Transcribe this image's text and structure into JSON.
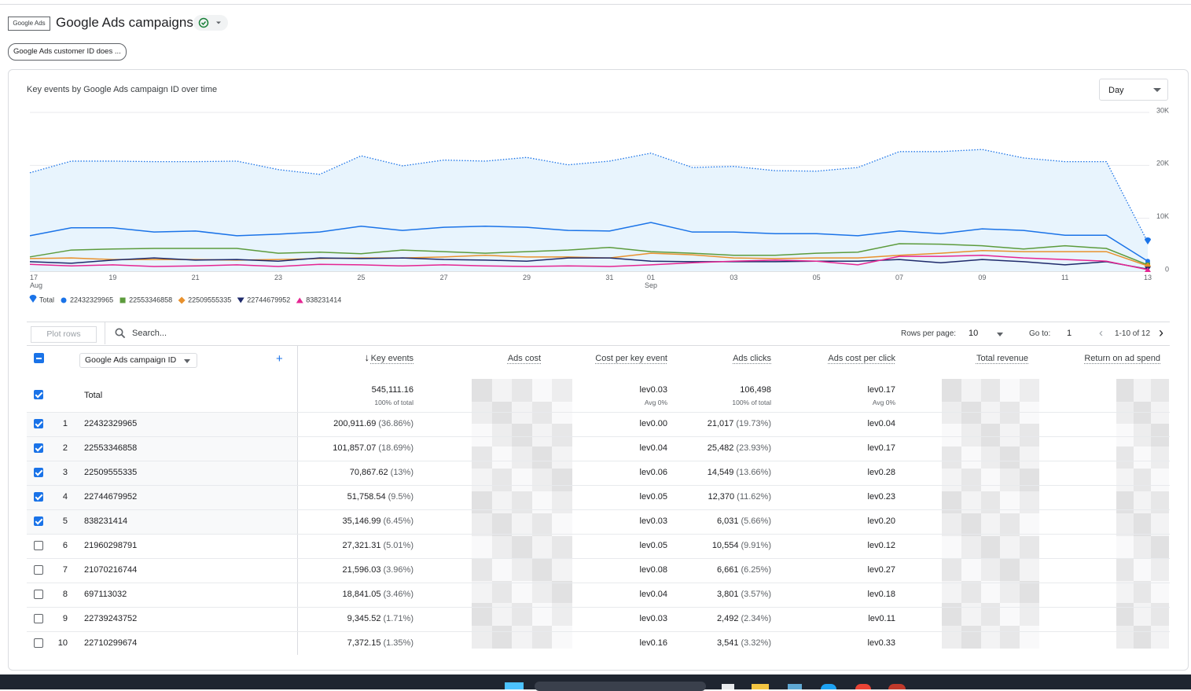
{
  "header": {
    "logo": "Google Ads",
    "title": "Google Ads campaigns",
    "filter_chip": "Google Ads customer ID does ..."
  },
  "chart_data": {
    "type": "line",
    "title": "Key events by Google Ads campaign ID over time",
    "granularity": "Day",
    "categories": [
      "17 Aug",
      null,
      "19",
      null,
      "21",
      null,
      "23",
      null,
      "25",
      null,
      "27",
      null,
      "29",
      null,
      "31",
      "01 Sep",
      null,
      "03",
      null,
      "05",
      null,
      "07",
      null,
      "09",
      null,
      "11",
      null,
      "13"
    ],
    "ylim": [
      0,
      30000
    ],
    "yticks": [
      0,
      {
        "value": 10000,
        "label": "10K"
      },
      {
        "value": 20000,
        "label": "20K"
      },
      {
        "value": 30000,
        "label": "30K"
      }
    ],
    "grid": true,
    "legend": "bottom",
    "series": [
      {
        "name": "Total",
        "color": "#1a73e8",
        "style": "dotted",
        "fill": "#e8f4fd",
        "marker": "pin",
        "values": [
          18600,
          20800,
          20800,
          20700,
          20700,
          20800,
          19200,
          18300,
          21800,
          19900,
          21000,
          20800,
          21500,
          20100,
          20800,
          22300,
          19600,
          19800,
          19000,
          18900,
          19600,
          22600,
          22600,
          23000,
          21400,
          20700,
          20700,
          5500
        ]
      },
      {
        "name": "22432329965",
        "color": "#1a73e8",
        "style": "solid",
        "marker": "circle",
        "values": [
          6700,
          8200,
          8200,
          7400,
          7600,
          6700,
          7000,
          7400,
          8500,
          7700,
          8300,
          8500,
          8300,
          7700,
          7600,
          9200,
          7400,
          7400,
          7100,
          7100,
          6700,
          7600,
          7100,
          8000,
          7700,
          6800,
          6800,
          1900
        ]
      },
      {
        "name": "22553346858",
        "color": "#5c9b3c",
        "style": "solid",
        "marker": "square",
        "values": [
          2700,
          4000,
          4200,
          4300,
          4300,
          4300,
          3400,
          3600,
          3300,
          4000,
          3700,
          3400,
          3700,
          4000,
          4500,
          3700,
          3400,
          3000,
          3000,
          3400,
          3600,
          5200,
          5100,
          4800,
          4200,
          4800,
          4300,
          1200
        ]
      },
      {
        "name": "22509555335",
        "color": "#e8912d",
        "style": "solid",
        "marker": "diamond",
        "values": [
          2400,
          2500,
          2200,
          2200,
          2200,
          2100,
          2200,
          2400,
          2500,
          2500,
          2700,
          3000,
          2700,
          2700,
          2500,
          3400,
          3100,
          2500,
          2400,
          2500,
          2500,
          3000,
          3400,
          3900,
          3700,
          3700,
          3700,
          1000
        ]
      },
      {
        "name": "22744679952",
        "color": "#1e2a6b",
        "style": "solid",
        "marker": "triangle-down",
        "values": [
          1800,
          1500,
          2100,
          2500,
          2100,
          2200,
          1900,
          2500,
          2400,
          2500,
          2200,
          2100,
          1900,
          2500,
          2500,
          1900,
          1800,
          1800,
          1800,
          1900,
          1900,
          2200,
          1600,
          2200,
          1800,
          1200,
          1800,
          400
        ]
      },
      {
        "name": "838231414",
        "color": "#e52592",
        "style": "solid",
        "marker": "triangle-up",
        "values": [
          1300,
          1000,
          1200,
          900,
          1000,
          1200,
          900,
          1300,
          1200,
          1000,
          1200,
          1000,
          900,
          1000,
          900,
          1200,
          1600,
          1900,
          2100,
          1900,
          1200,
          2800,
          2800,
          3000,
          2500,
          2200,
          1900,
          300
        ]
      }
    ]
  },
  "table": {
    "plot_rows": "Plot rows",
    "search_placeholder": "Search...",
    "rows_per_page_label": "Rows per page:",
    "rows_per_page": "10",
    "goto_label": "Go to:",
    "goto": "1",
    "page_range": "1-10 of 12",
    "dimension": "Google Ads campaign ID",
    "columns": [
      "Key events",
      "Ads cost",
      "Cost per key event",
      "Ads clicks",
      "Ads cost per click",
      "Total revenue",
      "Return on ad spend"
    ],
    "sorted_column": 0,
    "total": {
      "label": "Total",
      "key_events": "545,111.16",
      "key_events_note": "100% of total",
      "cost_per_key_event": "lev0.03",
      "cost_per_key_event_note": "Avg 0%",
      "ads_clicks": "106,498",
      "ads_clicks_note": "100% of total",
      "ads_cost_per_click": "lev0.17",
      "ads_cost_per_click_note": "Avg 0%"
    },
    "rows": [
      {
        "rank": "1",
        "id": "22432329965",
        "checked": true,
        "key_events": "200,911.69",
        "key_events_share": "(36.86%)",
        "cost_per_key_event": "lev0.00",
        "ads_clicks": "21,017",
        "ads_clicks_share": "(19.73%)",
        "ads_cost_per_click": "lev0.04"
      },
      {
        "rank": "2",
        "id": "22553346858",
        "checked": true,
        "key_events": "101,857.07",
        "key_events_share": "(18.69%)",
        "cost_per_key_event": "lev0.04",
        "ads_clicks": "25,482",
        "ads_clicks_share": "(23.93%)",
        "ads_cost_per_click": "lev0.17"
      },
      {
        "rank": "3",
        "id": "22509555335",
        "checked": true,
        "key_events": "70,867.62",
        "key_events_share": "(13%)",
        "cost_per_key_event": "lev0.06",
        "ads_clicks": "14,549",
        "ads_clicks_share": "(13.66%)",
        "ads_cost_per_click": "lev0.28"
      },
      {
        "rank": "4",
        "id": "22744679952",
        "checked": true,
        "key_events": "51,758.54",
        "key_events_share": "(9.5%)",
        "cost_per_key_event": "lev0.05",
        "ads_clicks": "12,370",
        "ads_clicks_share": "(11.62%)",
        "ads_cost_per_click": "lev0.23"
      },
      {
        "rank": "5",
        "id": "838231414",
        "checked": true,
        "key_events": "35,146.99",
        "key_events_share": "(6.45%)",
        "cost_per_key_event": "lev0.03",
        "ads_clicks": "6,031",
        "ads_clicks_share": "(5.66%)",
        "ads_cost_per_click": "lev0.20"
      },
      {
        "rank": "6",
        "id": "21960298791",
        "checked": false,
        "key_events": "27,321.31",
        "key_events_share": "(5.01%)",
        "cost_per_key_event": "lev0.05",
        "ads_clicks": "10,554",
        "ads_clicks_share": "(9.91%)",
        "ads_cost_per_click": "lev0.12"
      },
      {
        "rank": "7",
        "id": "21070216744",
        "checked": false,
        "key_events": "21,596.03",
        "key_events_share": "(3.96%)",
        "cost_per_key_event": "lev0.08",
        "ads_clicks": "6,661",
        "ads_clicks_share": "(6.25%)",
        "ads_cost_per_click": "lev0.27"
      },
      {
        "rank": "8",
        "id": "697113032",
        "checked": false,
        "key_events": "18,841.05",
        "key_events_share": "(3.46%)",
        "cost_per_key_event": "lev0.04",
        "ads_clicks": "3,801",
        "ads_clicks_share": "(3.57%)",
        "ads_cost_per_click": "lev0.18"
      },
      {
        "rank": "9",
        "id": "22739243752",
        "checked": false,
        "key_events": "9,345.52",
        "key_events_share": "(1.71%)",
        "cost_per_key_event": "lev0.03",
        "ads_clicks": "2,492",
        "ads_clicks_share": "(2.34%)",
        "ads_cost_per_click": "lev0.11"
      },
      {
        "rank": "10",
        "id": "22710299674",
        "checked": false,
        "key_events": "7,372.15",
        "key_events_share": "(1.35%)",
        "cost_per_key_event": "lev0.16",
        "ads_clicks": "3,541",
        "ads_clicks_share": "(3.32%)",
        "ads_cost_per_click": "lev0.33"
      }
    ]
  }
}
